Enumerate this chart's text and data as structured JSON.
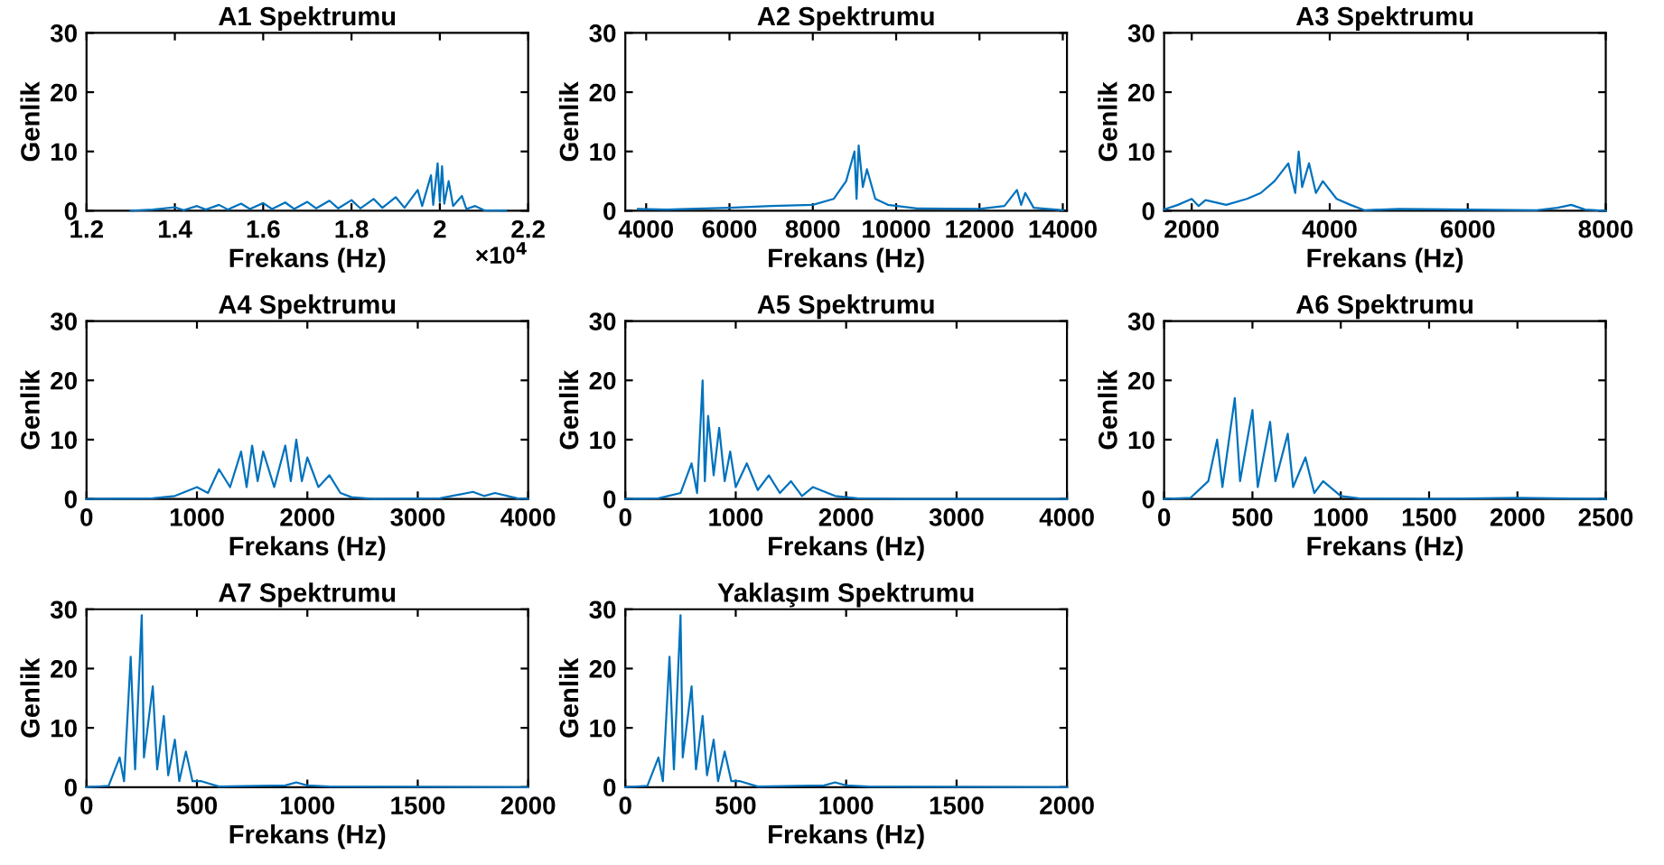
{
  "chart_data": [
    {
      "type": "line",
      "title": "A1 Spektrumu",
      "xlabel": "Frekans (Hz)",
      "ylabel": "Genlik",
      "annotations": [
        "×10$^{4}$"
      ],
      "xlim": [
        1.2,
        2.2
      ],
      "xticks": [
        1.2,
        1.4,
        1.6,
        1.8,
        2,
        2.2
      ],
      "ylim": [
        0,
        30
      ],
      "yticks": [
        0,
        10,
        20,
        30
      ],
      "series": [
        {
          "color": "#0072bd",
          "x": [
            1.3,
            1.35,
            1.4,
            1.42,
            1.45,
            1.47,
            1.5,
            1.52,
            1.55,
            1.57,
            1.6,
            1.62,
            1.65,
            1.67,
            1.7,
            1.72,
            1.75,
            1.77,
            1.8,
            1.82,
            1.85,
            1.87,
            1.9,
            1.92,
            1.95,
            1.96,
            1.98,
            1.985,
            1.995,
            2.0,
            2.005,
            2.01,
            2.02,
            2.03,
            2.05,
            2.06,
            2.08,
            2.1,
            2.15
          ],
          "values": [
            0,
            0.2,
            0.6,
            0.1,
            0.8,
            0.2,
            1.0,
            0.2,
            1.2,
            0.3,
            1.3,
            0.3,
            1.4,
            0.3,
            1.5,
            0.4,
            1.7,
            0.4,
            1.8,
            0.4,
            2.0,
            0.5,
            2.3,
            0.5,
            3.5,
            0.8,
            6,
            1,
            8,
            1.5,
            7.5,
            1.2,
            5,
            0.8,
            2.5,
            0.3,
            0.8,
            0.1,
            0
          ]
        }
      ]
    },
    {
      "type": "line",
      "title": "A2 Spektrumu",
      "xlabel": "Frekans (Hz)",
      "ylabel": "Genlik",
      "xlim": [
        3500,
        14100
      ],
      "xticks": [
        4000,
        6000,
        8000,
        10000,
        12000,
        14000
      ],
      "ylim": [
        0,
        30
      ],
      "yticks": [
        0,
        10,
        20,
        30
      ],
      "series": [
        {
          "color": "#0072bd",
          "x": [
            3800,
            4500,
            5000,
            6000,
            7000,
            8000,
            8500,
            8800,
            9000,
            9050,
            9100,
            9200,
            9300,
            9500,
            9800,
            10500,
            12000,
            12600,
            12900,
            13000,
            13100,
            13300,
            14000
          ],
          "values": [
            0.3,
            0.2,
            0.3,
            0.5,
            0.8,
            1,
            2,
            5,
            10,
            2,
            11,
            4,
            7,
            2,
            1,
            0.4,
            0.3,
            0.8,
            3.5,
            1,
            3,
            0.5,
            0.1
          ]
        }
      ]
    },
    {
      "type": "line",
      "title": "A3 Spektrumu",
      "xlabel": "Frekans (Hz)",
      "ylabel": "Genlik",
      "xlim": [
        1600,
        8000
      ],
      "xticks": [
        2000,
        4000,
        6000,
        8000
      ],
      "ylim": [
        0,
        30
      ],
      "yticks": [
        0,
        10,
        20,
        30
      ],
      "series": [
        {
          "color": "#0072bd",
          "x": [
            1600,
            1800,
            2000,
            2100,
            2200,
            2500,
            2800,
            3000,
            3200,
            3400,
            3500,
            3550,
            3600,
            3700,
            3800,
            3900,
            4100,
            4300,
            4500,
            5000,
            6000,
            7000,
            7300,
            7500,
            7700,
            8000
          ],
          "values": [
            0.2,
            1,
            2,
            0.8,
            1.8,
            1,
            2,
            3,
            5,
            8,
            3,
            10,
            4,
            8,
            3,
            5,
            2,
            1,
            0.1,
            0.3,
            0.2,
            0.1,
            0.5,
            1,
            0.2,
            0
          ]
        }
      ]
    },
    {
      "type": "line",
      "title": "A4 Spektrumu",
      "xlabel": "Frekans (Hz)",
      "ylabel": "Genlik",
      "xlim": [
        0,
        4000
      ],
      "xticks": [
        0,
        1000,
        2000,
        3000,
        4000
      ],
      "ylim": [
        0,
        30
      ],
      "yticks": [
        0,
        10,
        20,
        30
      ],
      "series": [
        {
          "color": "#0072bd",
          "x": [
            0,
            600,
            800,
            1000,
            1100,
            1200,
            1300,
            1400,
            1450,
            1500,
            1550,
            1600,
            1700,
            1800,
            1850,
            1900,
            1950,
            2000,
            2100,
            2200,
            2300,
            2400,
            2600,
            3200,
            3500,
            3600,
            3700,
            3900,
            4000
          ],
          "values": [
            0,
            0.1,
            0.5,
            2,
            1,
            5,
            2,
            8,
            2,
            9,
            3,
            8,
            2,
            9,
            3,
            10,
            3,
            7,
            2,
            4,
            1,
            0.3,
            0,
            0.1,
            1.2,
            0.5,
            1,
            0.1,
            0
          ]
        }
      ]
    },
    {
      "type": "line",
      "title": "A5 Spektrumu",
      "xlabel": "Frekans (Hz)",
      "ylabel": "Genlik",
      "xlim": [
        0,
        4000
      ],
      "xticks": [
        0,
        1000,
        2000,
        3000,
        4000
      ],
      "ylim": [
        0,
        30
      ],
      "yticks": [
        0,
        10,
        20,
        30
      ],
      "series": [
        {
          "color": "#0072bd",
          "x": [
            0,
            300,
            500,
            600,
            650,
            700,
            720,
            750,
            800,
            850,
            900,
            950,
            1000,
            1100,
            1200,
            1300,
            1400,
            1500,
            1600,
            1700,
            1900,
            2100,
            2500,
            4000
          ],
          "values": [
            0,
            0.1,
            1,
            6,
            1,
            20,
            3,
            14,
            4,
            12,
            3,
            8,
            2,
            6,
            1.5,
            4,
            1,
            3,
            0.5,
            2,
            0.5,
            0.1,
            0,
            0
          ]
        }
      ]
    },
    {
      "type": "line",
      "title": "A6 Spektrumu",
      "xlabel": "Frekans (Hz)",
      "ylabel": "Genlik",
      "xlim": [
        0,
        2500
      ],
      "xticks": [
        0,
        500,
        1000,
        1500,
        2000,
        2500
      ],
      "ylim": [
        0,
        30
      ],
      "yticks": [
        0,
        10,
        20,
        30
      ],
      "series": [
        {
          "color": "#0072bd",
          "x": [
            0,
            150,
            250,
            300,
            330,
            400,
            430,
            500,
            530,
            600,
            630,
            700,
            730,
            800,
            850,
            900,
            1000,
            1100,
            1500,
            2000,
            2500
          ],
          "values": [
            0,
            0.2,
            3,
            10,
            2,
            17,
            3,
            15,
            2,
            13,
            3,
            11,
            2,
            7,
            1,
            3,
            0.5,
            0.1,
            0,
            0.2,
            0
          ]
        }
      ]
    },
    {
      "type": "line",
      "title": "A7 Spektrumu",
      "xlabel": "Frekans (Hz)",
      "ylabel": "Genlik",
      "xlim": [
        0,
        2000
      ],
      "xticks": [
        0,
        500,
        1000,
        1500,
        2000
      ],
      "ylim": [
        0,
        30
      ],
      "yticks": [
        0,
        10,
        20,
        30
      ],
      "series": [
        {
          "color": "#0072bd",
          "x": [
            0,
            100,
            150,
            170,
            200,
            220,
            250,
            260,
            300,
            320,
            350,
            370,
            400,
            420,
            450,
            480,
            520,
            600,
            900,
            950,
            1000,
            1100,
            2000
          ],
          "values": [
            0,
            0.2,
            5,
            1,
            22,
            3,
            29,
            5,
            17,
            3,
            12,
            2,
            8,
            1,
            6,
            1,
            1,
            0.1,
            0.3,
            0.8,
            0.3,
            0.1,
            0
          ]
        }
      ]
    },
    {
      "type": "line",
      "title": "Yaklaşım Spektrumu",
      "xlabel": "Frekans (Hz)",
      "ylabel": "Genlik",
      "xlim": [
        0,
        2000
      ],
      "xticks": [
        0,
        500,
        1000,
        1500,
        2000
      ],
      "ylim": [
        0,
        30
      ],
      "yticks": [
        0,
        10,
        20,
        30
      ],
      "series": [
        {
          "color": "#0072bd",
          "x": [
            0,
            100,
            150,
            170,
            200,
            220,
            250,
            260,
            300,
            320,
            350,
            370,
            400,
            420,
            450,
            480,
            520,
            600,
            900,
            950,
            1000,
            1100,
            2000
          ],
          "values": [
            0,
            0.2,
            5,
            1,
            22,
            3,
            29,
            5,
            17,
            3,
            12,
            2,
            8,
            1,
            6,
            1,
            1,
            0.1,
            0.3,
            0.8,
            0.3,
            0.1,
            0
          ]
        }
      ]
    }
  ]
}
